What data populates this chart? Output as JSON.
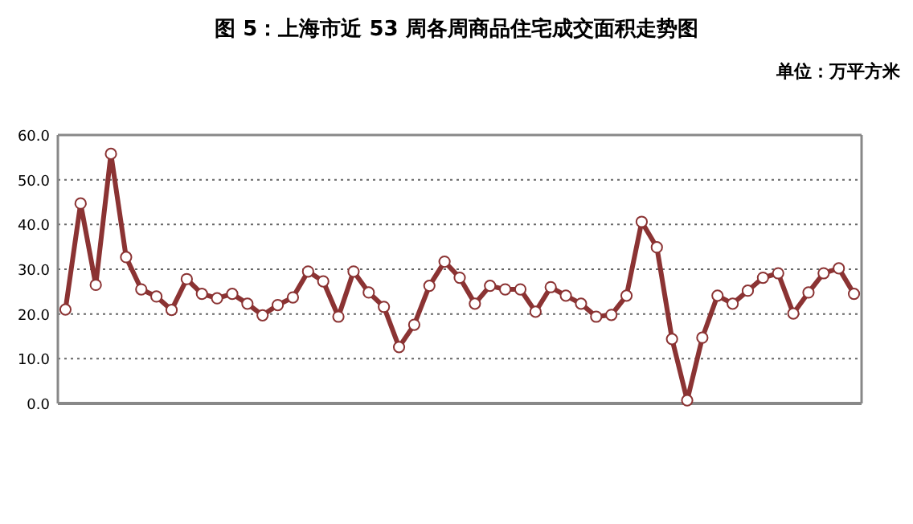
{
  "chart_data": {
    "type": "line",
    "title": "图 5：上海市近 53 周各周商品住宅成交面积走势图",
    "annotations": [
      "单位：万平方米"
    ],
    "categories": [
      null,
      null,
      null,
      null,
      null,
      null,
      null,
      null,
      null,
      null,
      null,
      null,
      null,
      null,
      null,
      null,
      null,
      null,
      null,
      null,
      null,
      null,
      null,
      null,
      null,
      null,
      null,
      null,
      null,
      null,
      null,
      null,
      null,
      null,
      null,
      null,
      null,
      null,
      null,
      null,
      null,
      null,
      null,
      null,
      null,
      null,
      null,
      null,
      null,
      null,
      null,
      null,
      null
    ],
    "series": [
      {
        "color": "#8b3333",
        "values": [
          21.0,
          44.7,
          26.5,
          55.8,
          32.7,
          25.5,
          23.9,
          20.9,
          27.8,
          24.5,
          23.5,
          24.5,
          22.3,
          19.7,
          22.0,
          23.7,
          29.5,
          27.3,
          19.4,
          29.5,
          24.8,
          21.6,
          12.6,
          17.6,
          26.3,
          31.7,
          28.1,
          22.3,
          26.3,
          25.5,
          25.5,
          20.5,
          26.0,
          24.1,
          22.3,
          19.4,
          19.8,
          24.1,
          40.6,
          34.9,
          14.4,
          0.7,
          14.7,
          24.1,
          22.3,
          25.2,
          28.1,
          29.1,
          20.1,
          24.8,
          29.1,
          30.2,
          24.5
        ]
      }
    ],
    "ylim": [
      0,
      60
    ],
    "yticks": [
      {
        "value": 0,
        "label": "0.0"
      },
      {
        "value": 10,
        "label": "10.0"
      },
      {
        "value": 20,
        "label": "20.0"
      },
      {
        "value": 30,
        "label": "30.0"
      },
      {
        "value": 40,
        "label": "40.0"
      },
      {
        "value": 50,
        "label": "50.0"
      },
      {
        "value": 60,
        "label": "60.0"
      }
    ],
    "grid": "y",
    "marker": "circle",
    "line_style": "solid"
  }
}
